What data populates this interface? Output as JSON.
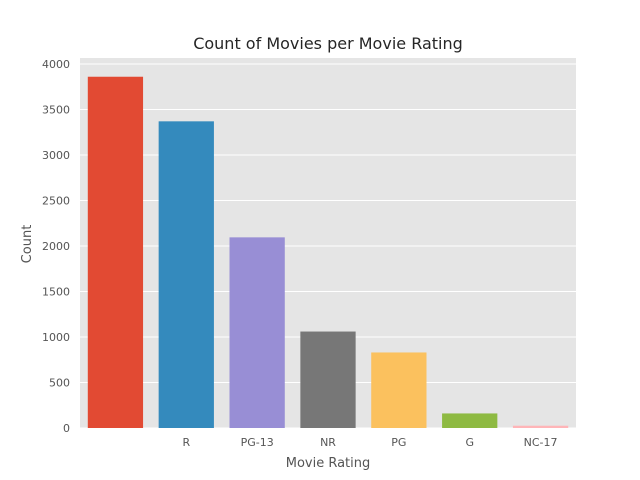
{
  "chart_data": {
    "type": "bar",
    "title": "Count of Movies per Movie Rating",
    "xlabel": "Movie Rating",
    "ylabel": "Count",
    "categories": [
      "",
      "R",
      "PG-13",
      "NR",
      "PG",
      "G",
      "NC-17"
    ],
    "values": [
      3860,
      3370,
      2095,
      1060,
      830,
      160,
      25
    ],
    "colors": [
      "#E24A33",
      "#348ABD",
      "#988ED5",
      "#777777",
      "#FBC15E",
      "#8EBA42",
      "#FFB5B8"
    ],
    "ylim": [
      0,
      4000
    ],
    "yticks": [
      0,
      500,
      1000,
      1500,
      2000,
      2500,
      3000,
      3500,
      4000
    ],
    "grid": true,
    "background": "#E5E5E5",
    "grid_color": "#FFFFFF"
  }
}
